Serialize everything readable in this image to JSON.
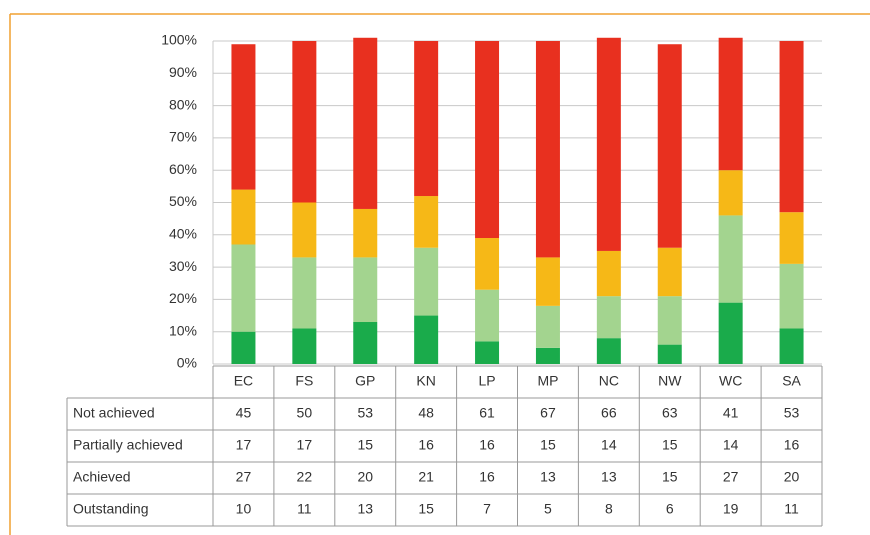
{
  "chart_data": {
    "type": "bar",
    "stacked": true,
    "categories": [
      "EC",
      "FS",
      "GP",
      "KN",
      "LP",
      "MP",
      "NC",
      "NW",
      "WC",
      "SA"
    ],
    "series": [
      {
        "name": "Not achieved",
        "color": "#e8301f",
        "values": [
          45,
          50,
          53,
          48,
          61,
          67,
          66,
          63,
          41,
          53
        ]
      },
      {
        "name": "Partially achieved",
        "color": "#f6b817",
        "values": [
          17,
          17,
          15,
          16,
          16,
          15,
          14,
          15,
          14,
          16
        ]
      },
      {
        "name": "Achieved",
        "color": "#a3d48f",
        "values": [
          27,
          22,
          20,
          21,
          16,
          13,
          13,
          15,
          27,
          20
        ]
      },
      {
        "name": "Outstanding",
        "color": "#1aab4b",
        "values": [
          10,
          11,
          13,
          15,
          7,
          5,
          8,
          6,
          19,
          11
        ]
      }
    ],
    "ylim": [
      0,
      100
    ],
    "yticks": [
      {
        "value": 0,
        "label": "0%"
      },
      {
        "value": 10,
        "label": "10%"
      },
      {
        "value": 20,
        "label": "20%"
      },
      {
        "value": 30,
        "label": "30%"
      },
      {
        "value": 40,
        "label": "40%"
      },
      {
        "value": 50,
        "label": "50%"
      },
      {
        "value": 60,
        "label": "60%"
      },
      {
        "value": 70,
        "label": "70%"
      },
      {
        "value": 80,
        "label": "80%"
      },
      {
        "value": 90,
        "label": "90%"
      },
      {
        "value": 100,
        "label": "100%"
      }
    ],
    "grid": true
  }
}
